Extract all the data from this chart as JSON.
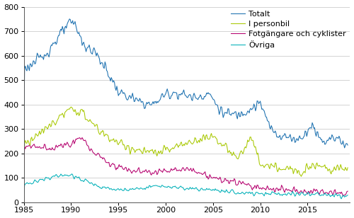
{
  "title": "",
  "ylabel": "",
  "xlabel": "",
  "xlim": [
    1985.0,
    2019.5
  ],
  "ylim": [
    0,
    800
  ],
  "yticks": [
    0,
    100,
    200,
    300,
    400,
    500,
    600,
    700,
    800
  ],
  "xticks": [
    1985,
    1990,
    1995,
    2000,
    2005,
    2010,
    2015
  ],
  "legend_labels": [
    "Totalt",
    "I personbil",
    "Fotgängare och cyklister",
    "Övriga"
  ],
  "line_colors": [
    "#1a6faf",
    "#a8c800",
    "#b5006e",
    "#00b0b8"
  ],
  "background_color": "#ffffff",
  "grid_color": "#cccccc",
  "legend_fontsize": 8,
  "tick_fontsize": 8
}
